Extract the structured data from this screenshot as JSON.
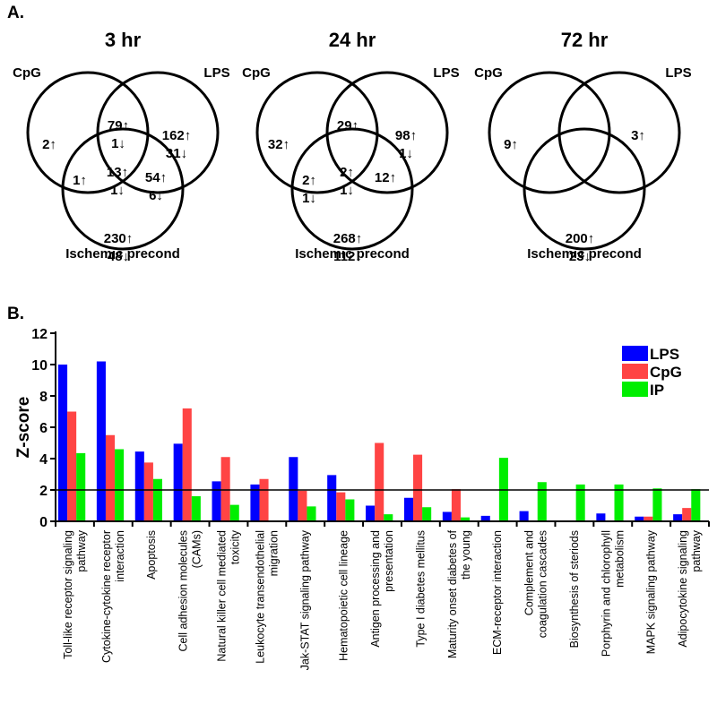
{
  "panel_a_label": "A.",
  "panel_b_label": "B.",
  "venn": [
    {
      "title": "3 hr",
      "set_labels": [
        "CpG",
        "LPS",
        "Ischemic precond"
      ],
      "regions": [
        {
          "region": "cpg_only",
          "lines": [
            "2↑"
          ]
        },
        {
          "region": "cpg_lps",
          "lines": [
            "79↑",
            "1↓"
          ]
        },
        {
          "region": "lps_only",
          "lines": [
            "162↑",
            "31↓"
          ]
        },
        {
          "region": "all_three",
          "lines": [
            "13↑",
            "1↓"
          ]
        },
        {
          "region": "cpg_ip",
          "lines": [
            "1↑"
          ]
        },
        {
          "region": "lps_ip",
          "lines": [
            "54↑",
            "6↓"
          ]
        },
        {
          "region": "ip_only",
          "lines": [
            "230↑",
            "48↓"
          ]
        }
      ]
    },
    {
      "title": "24 hr",
      "set_labels": [
        "CpG",
        "LPS",
        "Ischemic precond"
      ],
      "regions": [
        {
          "region": "cpg_only",
          "lines": [
            "32↑"
          ]
        },
        {
          "region": "cpg_lps",
          "lines": [
            "29↑"
          ]
        },
        {
          "region": "lps_only",
          "lines": [
            "98↑",
            "1↓"
          ]
        },
        {
          "region": "all_three",
          "lines": [
            "2↑",
            "1↓"
          ]
        },
        {
          "region": "cpg_ip",
          "lines": [
            "2↑",
            "1↓"
          ]
        },
        {
          "region": "lps_ip",
          "lines": [
            "12↑"
          ]
        },
        {
          "region": "ip_only",
          "lines": [
            "268↑",
            "112↓"
          ]
        }
      ]
    },
    {
      "title": "72 hr",
      "set_labels": [
        "CpG",
        "LPS",
        "Ischemic precond"
      ],
      "regions": [
        {
          "region": "cpg_only",
          "lines": [
            "9↑"
          ]
        },
        {
          "region": "lps_only",
          "lines": [
            "3↑"
          ]
        },
        {
          "region": "ip_only",
          "lines": [
            "200↑",
            "23↓"
          ]
        }
      ]
    }
  ],
  "chart_data": {
    "type": "bar",
    "ylabel": "Z-score",
    "xlabel": "",
    "ylim": [
      0,
      12
    ],
    "yticks": [
      0,
      2,
      4,
      6,
      8,
      10,
      12
    ],
    "threshold": 2,
    "legend_position": "top-right",
    "categories": [
      [
        "Toll-like receptor signaling",
        "pathway"
      ],
      [
        "Cytokine-cytokine receptor",
        "interaction"
      ],
      [
        "Apoptosis"
      ],
      [
        "Cell adhesion molecules",
        "(CAMs)"
      ],
      [
        "Natural killer cell mediated",
        "toxicity"
      ],
      [
        "Leukocyte transendothelial",
        "migration"
      ],
      [
        "Jak-STAT signaling pathway"
      ],
      [
        "Hematopoietic cell lineage"
      ],
      [
        "Antigen processing and",
        "presentation"
      ],
      [
        "Type I diabetes mellitus"
      ],
      [
        "Maturity onset diabetes of",
        "the young"
      ],
      [
        "ECM-receptor interaction"
      ],
      [
        "Complement and",
        "coagulation cascades"
      ],
      [
        "Biosynthesis of steriods"
      ],
      [
        "Porphyrin and chlorophyll",
        "metabolism"
      ],
      [
        "MAPK signaling pathway"
      ],
      [
        "Adipocytokine signaling",
        "pathway"
      ]
    ],
    "series": [
      {
        "name": "LPS",
        "color": "#0000ff",
        "values": [
          10.0,
          10.2,
          4.45,
          4.95,
          2.55,
          2.35,
          4.1,
          2.95,
          1.0,
          1.5,
          0.6,
          0.35,
          0.65,
          0,
          0.5,
          0.3,
          0.45
        ]
      },
      {
        "name": "CpG",
        "color": "#ff4444",
        "values": [
          7.0,
          5.5,
          3.75,
          7.2,
          4.1,
          2.7,
          1.95,
          1.85,
          5.0,
          4.25,
          2.05,
          0,
          0,
          0,
          0,
          0.3,
          0.85
        ]
      },
      {
        "name": "IP",
        "color": "#00ee00",
        "values": [
          4.35,
          4.6,
          2.7,
          1.6,
          1.05,
          0,
          0.95,
          1.4,
          0.45,
          0.9,
          0.25,
          4.05,
          2.5,
          2.35,
          2.35,
          2.1,
          2.05
        ]
      }
    ]
  }
}
